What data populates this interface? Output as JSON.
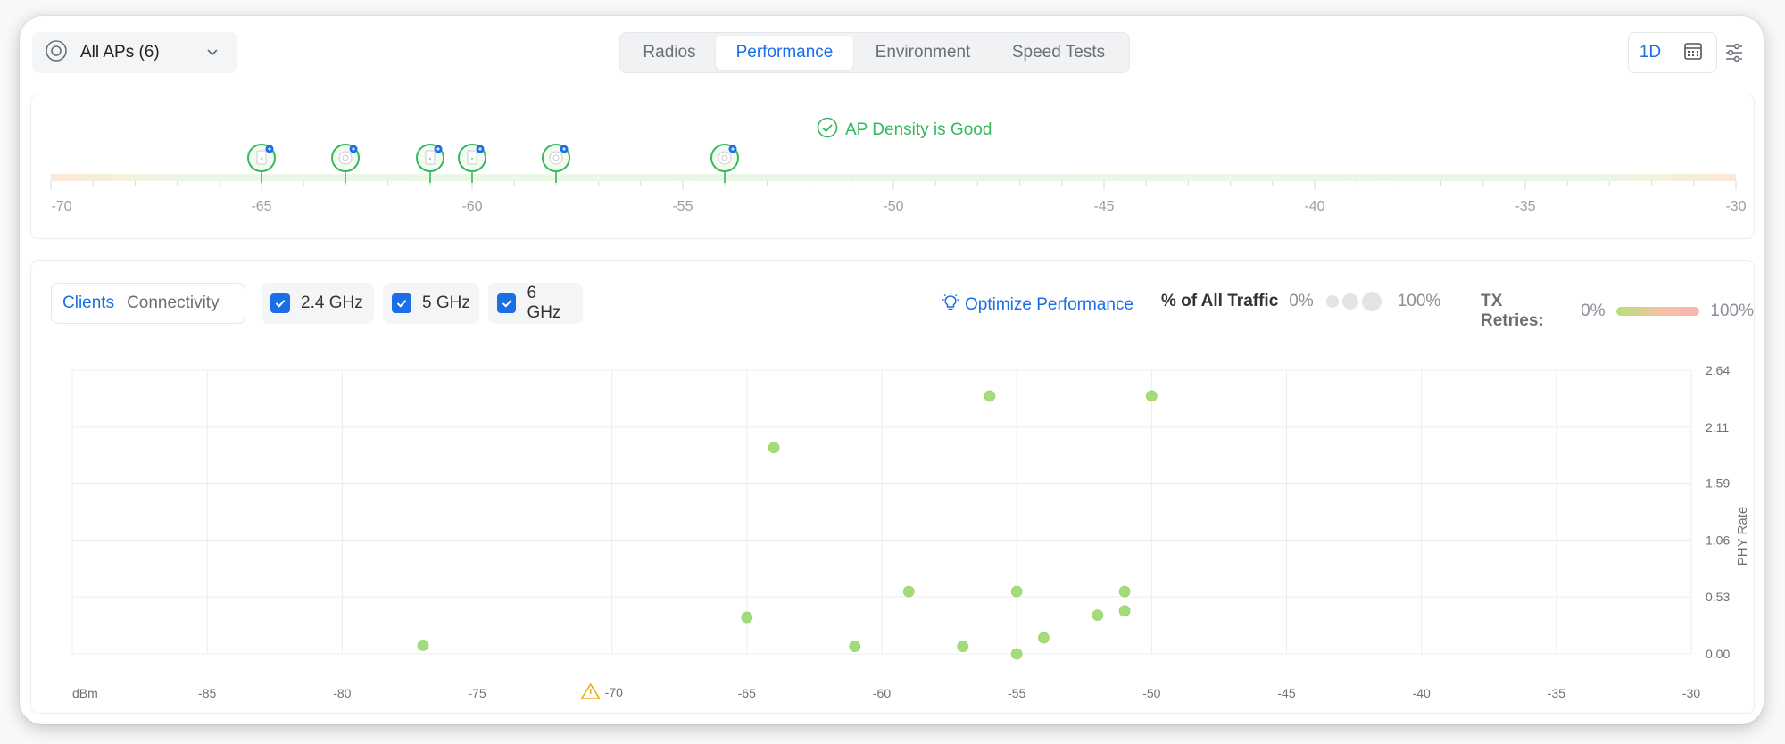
{
  "toolbar": {
    "ap_selector": "All APs (6)",
    "tabs": [
      {
        "label": "Radios",
        "active": false
      },
      {
        "label": "Performance",
        "active": true
      },
      {
        "label": "Environment",
        "active": false
      },
      {
        "label": "Speed Tests",
        "active": false
      }
    ],
    "range_label": "1D"
  },
  "density": {
    "status": "AP Density is Good",
    "status_color": "#34b95c",
    "axis": {
      "min": -70,
      "max": -30,
      "labels": [
        "-70",
        "-65",
        "-60",
        "-55",
        "-50",
        "-45",
        "-40",
        "-35",
        "-30"
      ]
    },
    "ap_markers": [
      {
        "dbm": -65,
        "kind": "wall-plate"
      },
      {
        "dbm": -63,
        "kind": "round"
      },
      {
        "dbm": -61,
        "kind": "wall-plate"
      },
      {
        "dbm": -60,
        "kind": "wall-plate"
      },
      {
        "dbm": -58,
        "kind": "round"
      },
      {
        "dbm": -54,
        "kind": "round"
      }
    ]
  },
  "controls": {
    "view_options": [
      "Clients",
      "Connectivity"
    ],
    "active_view": "Clients",
    "bands": [
      {
        "label": "2.4 GHz",
        "checked": true
      },
      {
        "label": "5 GHz",
        "checked": true
      },
      {
        "label": "6 GHz",
        "checked": true
      }
    ],
    "optimize": "Optimize Performance",
    "traffic_legend": {
      "title": "% of All Traffic",
      "min": "0%",
      "max": "100%"
    },
    "retries_legend": {
      "title": "TX Retries:",
      "min": "0%",
      "max": "100%"
    }
  },
  "chart_data": {
    "type": "scatter",
    "xlabel": "dBm",
    "ylabel": "PHY Rate",
    "xlim": [
      -90,
      -30
    ],
    "ylim": [
      0,
      2.64
    ],
    "x_ticks": [
      "-85",
      "-80",
      "-75",
      "-70",
      "-65",
      "-60",
      "-55",
      "-50",
      "-45",
      "-40",
      "-35",
      "-30"
    ],
    "warning_tick": "-70",
    "y_ticks": [
      "0.00",
      "0.53",
      "1.06",
      "1.59",
      "2.11",
      "2.64"
    ],
    "grid": true,
    "point_color": "#a4dc7c",
    "points": [
      {
        "x": -77,
        "y": 0.08
      },
      {
        "x": -65,
        "y": 0.34
      },
      {
        "x": -64,
        "y": 1.92
      },
      {
        "x": -61,
        "y": 0.07
      },
      {
        "x": -59,
        "y": 0.58
      },
      {
        "x": -57,
        "y": 0.07
      },
      {
        "x": -56,
        "y": 2.4
      },
      {
        "x": -55,
        "y": 0.58
      },
      {
        "x": -55,
        "y": 0.0
      },
      {
        "x": -54,
        "y": 0.15
      },
      {
        "x": -52,
        "y": 0.36
      },
      {
        "x": -51,
        "y": 0.58
      },
      {
        "x": -51,
        "y": 0.4
      },
      {
        "x": -50,
        "y": 2.4
      }
    ]
  }
}
